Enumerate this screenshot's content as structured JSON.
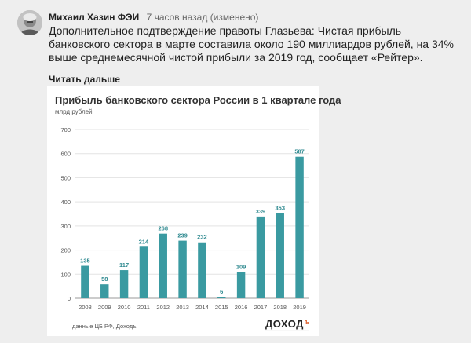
{
  "post": {
    "author": "Михаил Хазин ФЭИ",
    "time": "7 часов назад (изменено)",
    "text": "Дополнительное подтверждение правоты Глазьева: Чистая прибыль банковского сектора в марте составила около 190 миллиардов рублей, на 34% выше среднемесячной чистой прибыли за 2019 год, сообщает «Рейтер».",
    "read_more": "Читать дальше"
  },
  "card": {
    "source": "данные ЦБ РФ, Доходъ",
    "brand": "ДОХОД",
    "brand_mark": "ъ"
  },
  "colors": {
    "bar": "#3a9aa1",
    "label": "#2f8a90",
    "grid": "#e3e3e3",
    "axis": "#555555"
  },
  "chart_data": {
    "type": "bar",
    "title": "Прибыль банковского  сектора России в 1 квартале года",
    "subtitle": "млрд рублей",
    "categories": [
      "2008",
      "2009",
      "2010",
      "2011",
      "2012",
      "2013",
      "2014",
      "2015",
      "2016",
      "2017",
      "2018",
      "2019"
    ],
    "values": [
      135,
      58,
      117,
      214,
      268,
      239,
      232,
      6,
      109,
      339,
      353,
      587
    ],
    "ylim": [
      0,
      700
    ],
    "yticks": [
      0,
      100,
      200,
      300,
      400,
      500,
      600,
      700
    ],
    "grid": true,
    "legend": "none"
  }
}
